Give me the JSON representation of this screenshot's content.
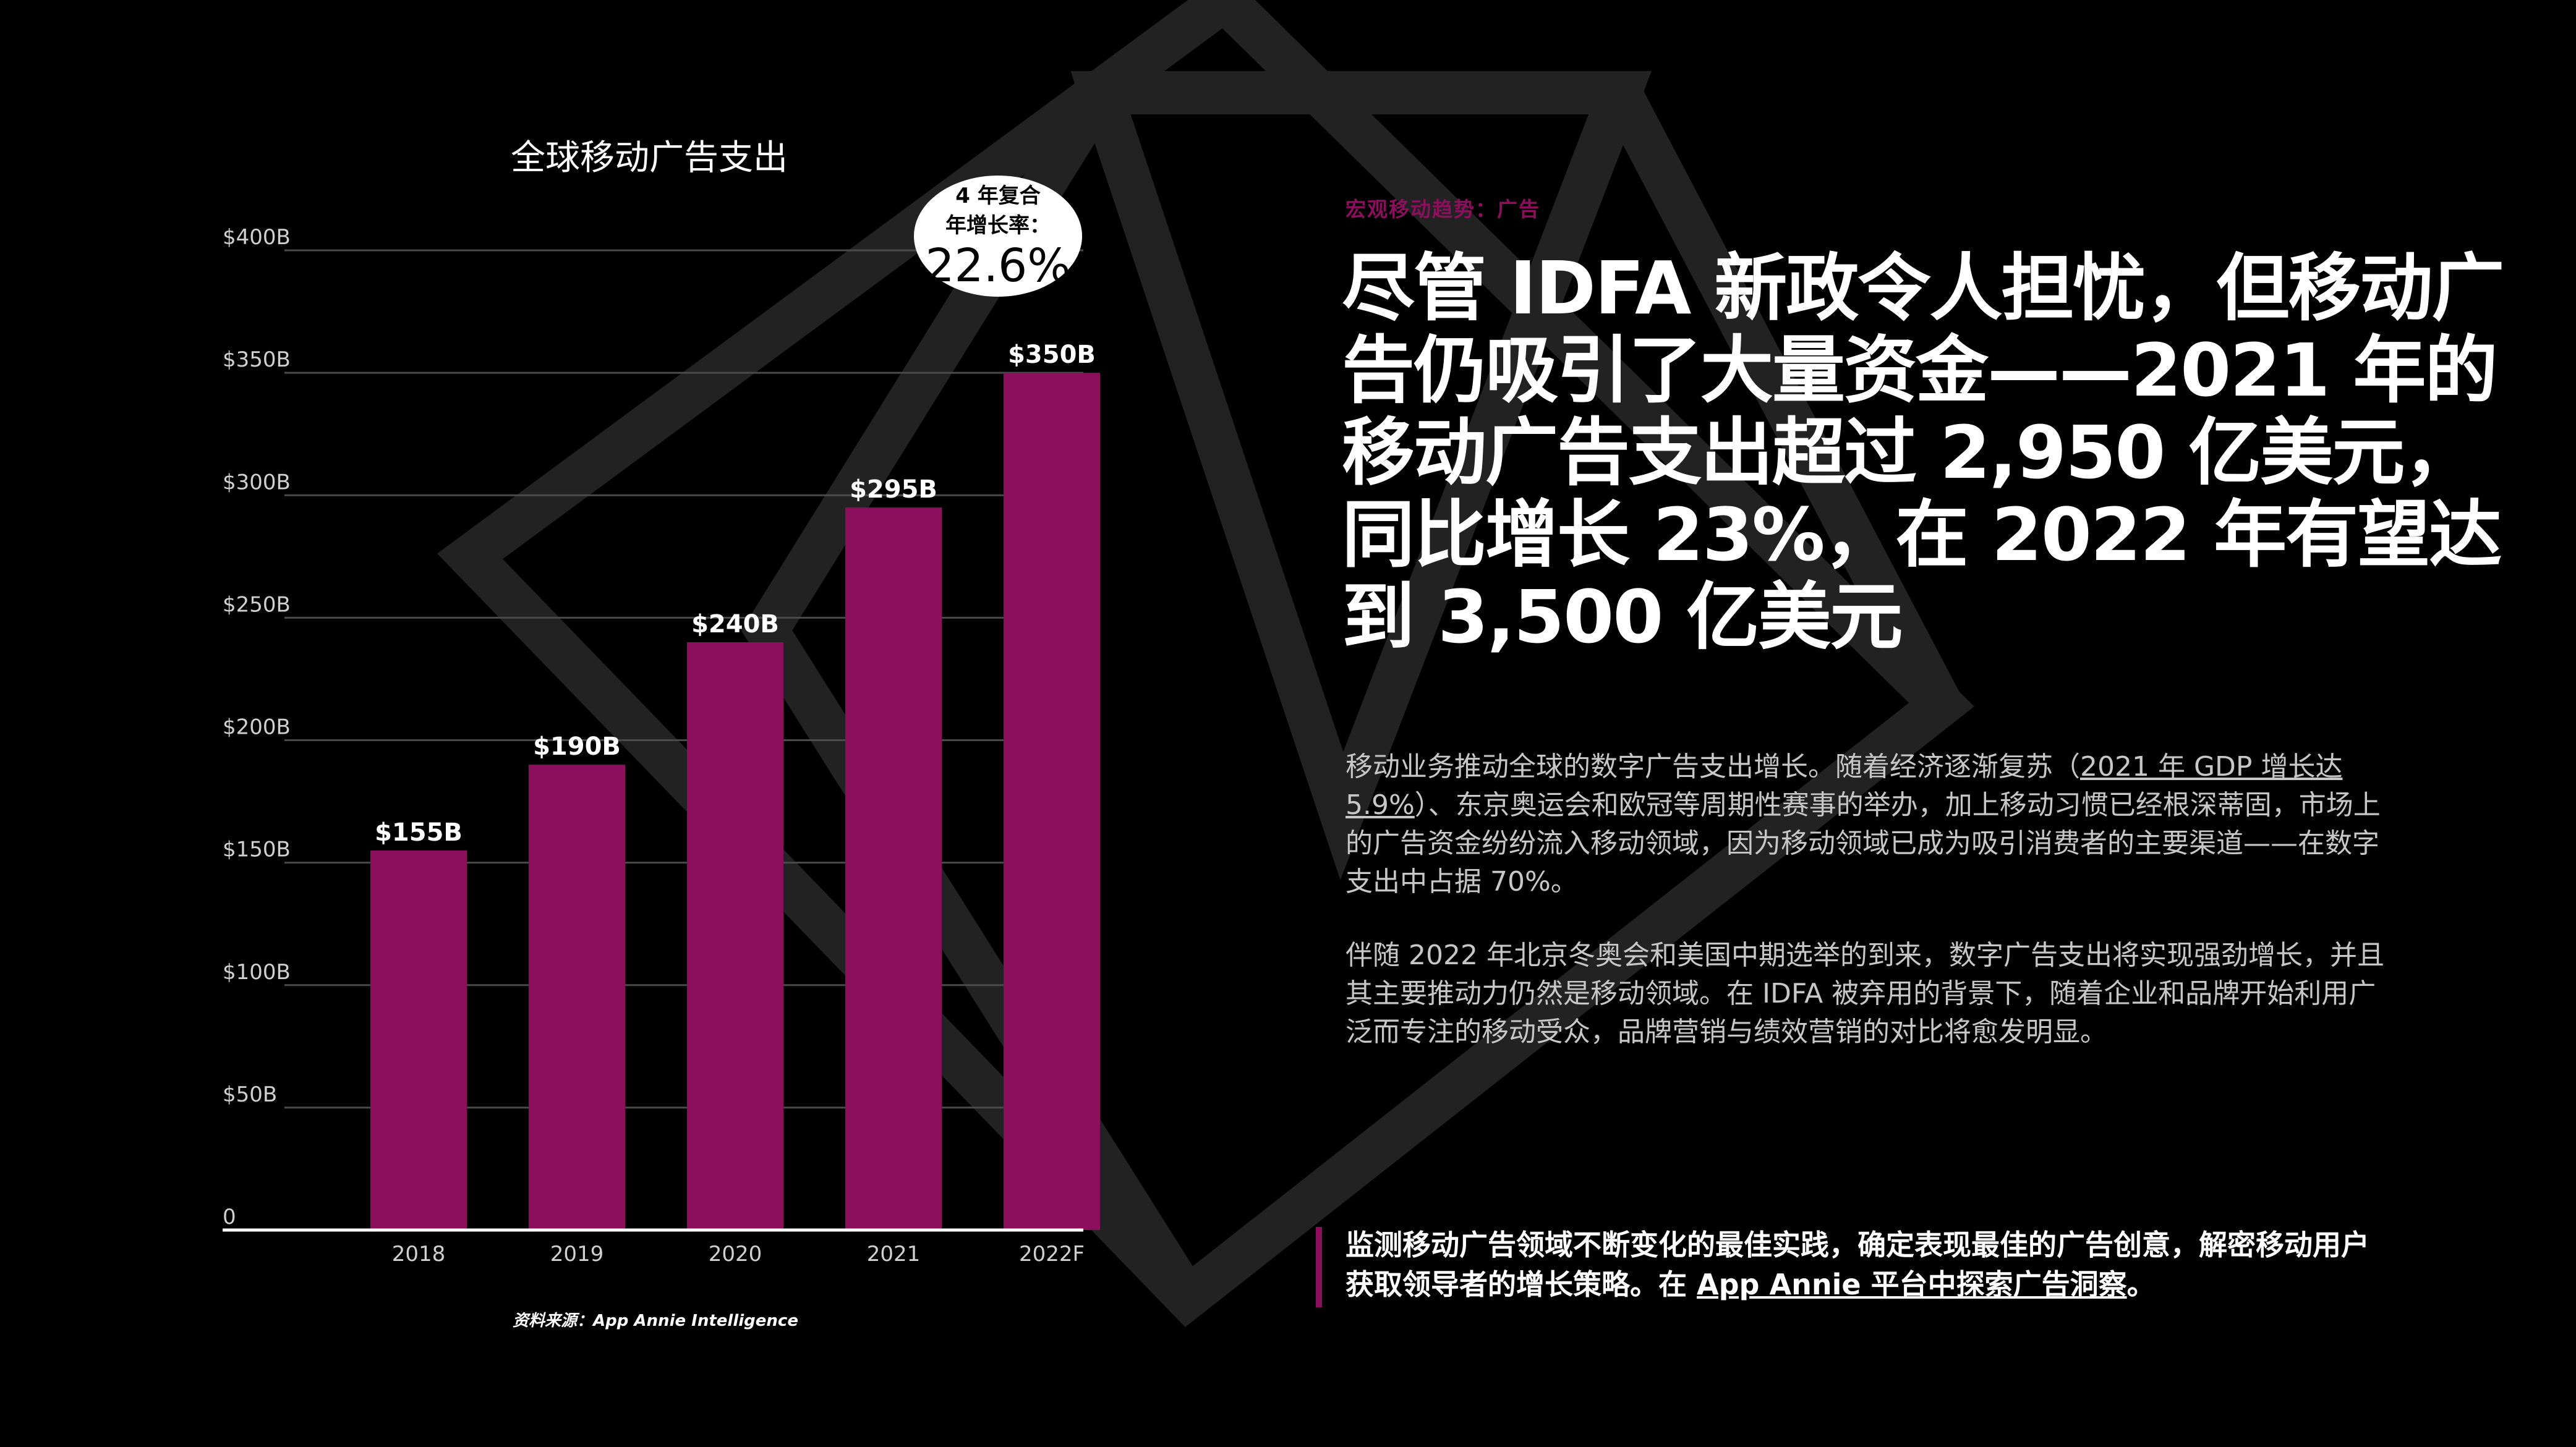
{
  "chart_data": {
    "type": "bar",
    "title": "全球移动广告支出",
    "categories": [
      "2018",
      "2019",
      "2020",
      "2021",
      "2022F"
    ],
    "values": [
      155,
      190,
      240,
      295,
      350
    ],
    "value_labels": [
      "$155B",
      "$190B",
      "$240B",
      "$295B",
      "$350B"
    ],
    "y_ticks": [
      0,
      50,
      100,
      150,
      200,
      250,
      300,
      350,
      400
    ],
    "y_tick_labels": [
      "0",
      "$50B",
      "$100B",
      "$150B",
      "$200B",
      "$250B",
      "$300B",
      "$350B",
      "$400B"
    ],
    "ylim": [
      0,
      400
    ],
    "xlabel": "",
    "ylabel": "",
    "grid": true,
    "bar_color": "#8c0f5e",
    "grid_color": "#4a4a4a"
  },
  "cagr_badge": {
    "label_line1": "4 年复合",
    "label_line2": "年增长率：",
    "value": "22.6%"
  },
  "source_note": "资料来源：App Annie Intelligence",
  "eyebrow": "宏观移动趋势：广告",
  "headline": "尽管 IDFA 新政令人担忧，但移动广告仍吸引了大量资金——2021 年的移动广告支出超过 2,950 亿美元，同比增长 23%，在 2022 年有望达到 3,500 亿美元",
  "paragraph1": {
    "before_link": "移动业务推动全球的数字广告支出增长。随着经济逐渐复苏（",
    "link_text": "2021 年 GDP 增长达 5.9%",
    "after_link": "）、东京奥运会和欧冠等周期性赛事的举办，加上移动习惯已经根深蒂固，市场上的广告资金纷纷流入移动领域，因为移动领域已成为吸引消费者的主要渠道——在数字支出中占据 70%。"
  },
  "paragraph2": "伴随 2022 年北京冬奥会和美国中期选举的到来，数字广告支出将实现强劲增长，并且其主要推动力仍然是移动领域。在 IDFA 被弃用的背景下，随着企业和品牌开始利用广泛而专注的移动受众，品牌营销与绩效营销的对比将愈发明显。",
  "cta": {
    "text": "监测移动广告领域不断变化的最佳实践，确定表现最佳的广告创意，解密移动用户获取领导者的增长策略。在 ",
    "link_text": "App Annie 平台中探索广告洞察",
    "end": "。"
  },
  "colors": {
    "accent": "#8c0f5e",
    "background": "#000000",
    "text": "#ffffff",
    "body_text": "#c7c7c7"
  }
}
